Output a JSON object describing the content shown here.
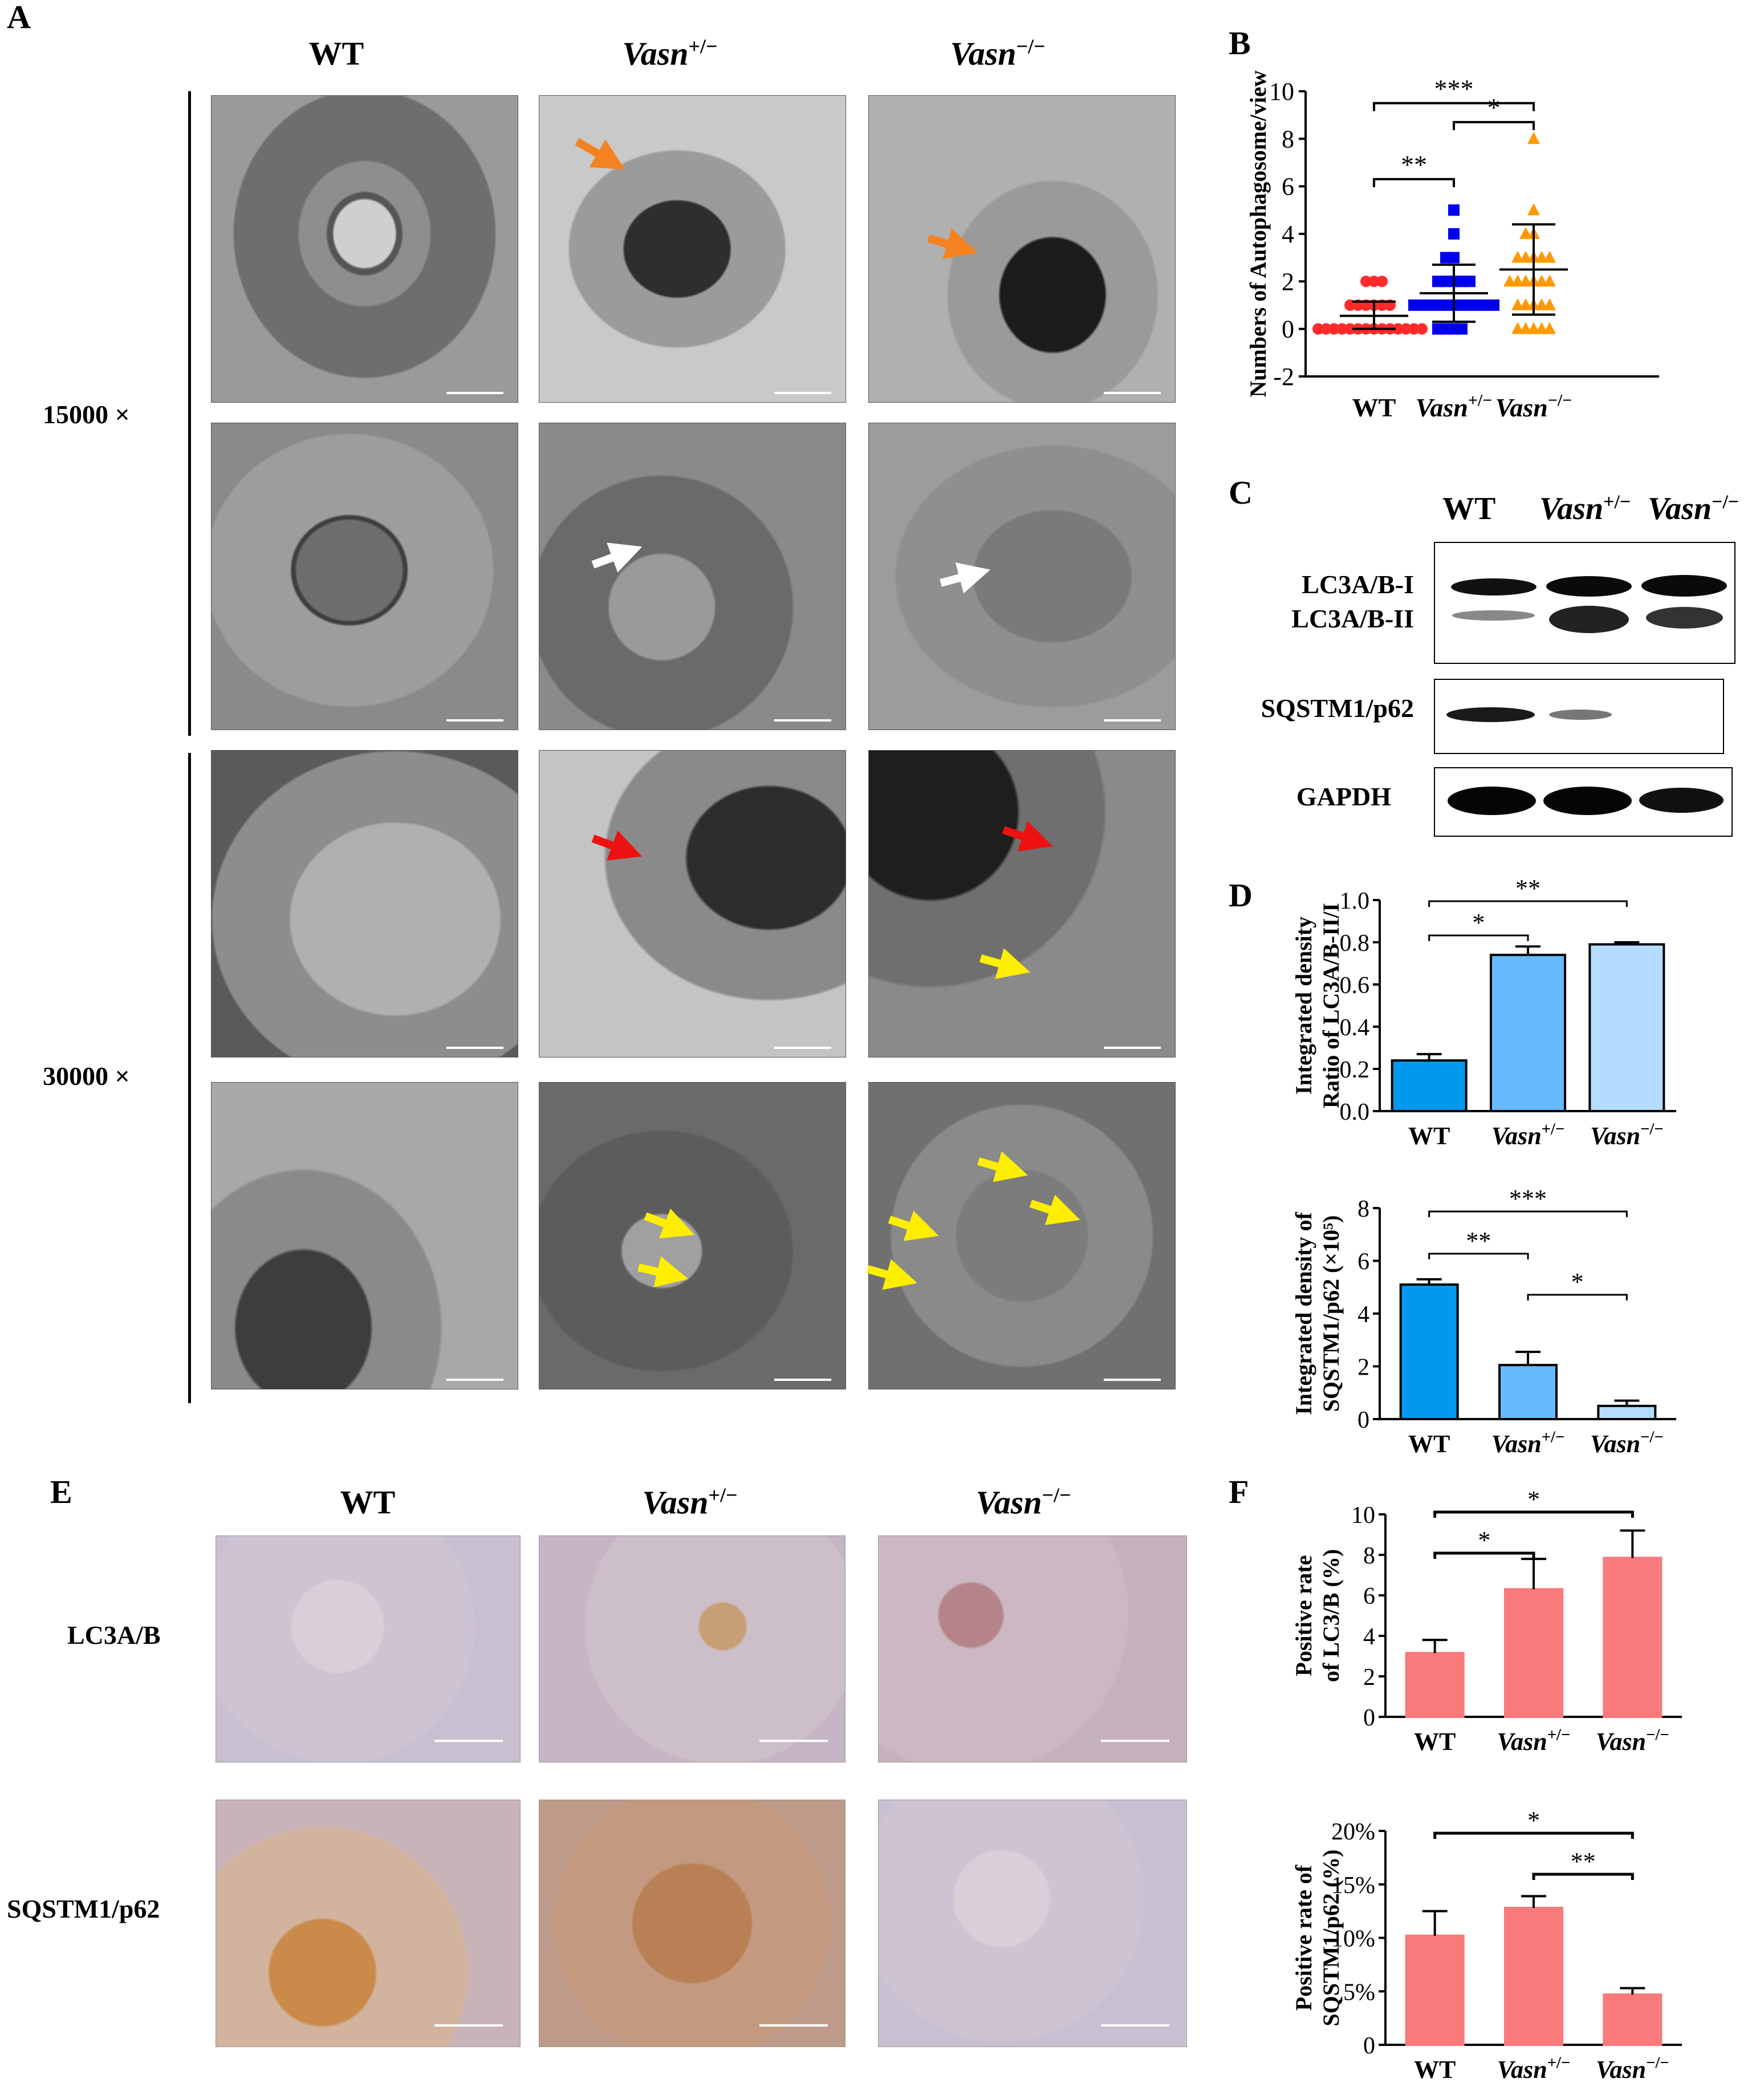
{
  "panels": {
    "a": "A",
    "b": "B",
    "c": "C",
    "d": "D",
    "e": "E",
    "f": "F"
  },
  "genotypes": {
    "wt": "WT",
    "het_base": "Vasn",
    "het_sup": "+/−",
    "ko_base": "Vasn",
    "ko_sup": "−/−"
  },
  "panel_a": {
    "mag1": "15000 ×",
    "mag2": "30000 ×"
  },
  "panel_c": {
    "lc3_i": "LC3A/B-I",
    "lc3_ii": "LC3A/B-II",
    "p62": "SQSTM1/p62",
    "gapdh": "GAPDH"
  },
  "panel_e": {
    "row1": "LC3A/B",
    "row2": "SQSTM1/p62"
  },
  "colors": {
    "wt_red": "#ff2a2a",
    "het_blue": "#0000ee",
    "ko_orange": "#ff9900",
    "bar_d1": "#0099ee",
    "bar_d2": "#66bbff",
    "bar_d3": "#b3dcff",
    "bar_f": "#f87a7a",
    "arrow_orange": "#f58220",
    "arrow_white": "#ffffff",
    "arrow_red": "#ee1111",
    "arrow_yellow": "#ffee00"
  },
  "chart_data": [
    {
      "id": "B",
      "type": "scatter",
      "ylabel": "Numbers of Autophagosome/view",
      "categories": [
        "WT",
        "Vasn+/−",
        "Vasn−/−"
      ],
      "ylim": [
        -2,
        10
      ],
      "yticks": [
        -2,
        0,
        2,
        4,
        6,
        8,
        10
      ],
      "means": [
        0.55,
        1.5,
        2.5
      ],
      "sd": [
        0.6,
        1.2,
        1.9
      ],
      "points": [
        [
          0,
          0,
          0,
          0,
          0,
          0,
          0,
          0,
          0,
          0,
          0,
          0,
          0,
          0,
          1,
          1,
          1,
          1,
          1,
          1,
          2,
          2,
          2
        ],
        [
          0,
          0,
          0,
          0,
          1,
          1,
          1,
          1,
          1,
          1,
          1,
          1,
          1,
          1,
          1,
          2,
          2,
          2,
          2,
          2,
          3,
          3,
          4,
          5
        ],
        [
          0,
          0,
          0,
          0,
          0,
          1,
          1,
          1,
          1,
          1,
          2,
          2,
          2,
          2,
          2,
          2,
          3,
          3,
          3,
          3,
          3,
          4,
          4,
          5,
          8
        ]
      ],
      "significance": [
        {
          "pair": [
            0,
            2
          ],
          "label": "***"
        },
        {
          "pair": [
            1,
            2
          ],
          "label": "*"
        },
        {
          "pair": [
            0,
            1
          ],
          "label": "**"
        }
      ]
    },
    {
      "id": "D1",
      "type": "bar",
      "ylabel": [
        "Integrated density",
        "Ratio of LC3A/B-II/I"
      ],
      "categories": [
        "WT",
        "Vasn+/−",
        "Vasn−/−"
      ],
      "values": [
        0.24,
        0.74,
        0.79
      ],
      "errors": [
        0.03,
        0.04,
        0.01
      ],
      "ylim": [
        0,
        1.0
      ],
      "yticks": [
        "0.0",
        "0.2",
        "0.4",
        "0.6",
        "0.8",
        "1.0"
      ],
      "significance": [
        {
          "pair": [
            0,
            2
          ],
          "label": "**"
        },
        {
          "pair": [
            0,
            1
          ],
          "label": "*"
        }
      ]
    },
    {
      "id": "D2",
      "type": "bar",
      "ylabel": [
        "Integrated density of",
        "SQSTM1/p62 (×10⁵)"
      ],
      "categories": [
        "WT",
        "Vasn+/−",
        "Vasn−/−"
      ],
      "values": [
        5.1,
        2.05,
        0.5
      ],
      "errors": [
        0.2,
        0.5,
        0.2
      ],
      "ylim": [
        0,
        8
      ],
      "yticks": [
        "0",
        "2",
        "4",
        "6",
        "8"
      ],
      "significance": [
        {
          "pair": [
            0,
            2
          ],
          "label": "***"
        },
        {
          "pair": [
            0,
            1
          ],
          "label": "**"
        },
        {
          "pair": [
            1,
            2
          ],
          "label": "*"
        }
      ]
    },
    {
      "id": "F1",
      "type": "bar",
      "ylabel": [
        "Positive rate",
        "of LC3/B (%)"
      ],
      "categories": [
        "WT",
        "Vasn+/−",
        "Vasn−/−"
      ],
      "values": [
        3.15,
        6.3,
        7.85
      ],
      "errors": [
        0.65,
        1.5,
        1.35
      ],
      "ylim": [
        0,
        10
      ],
      "yticks": [
        "0",
        "2",
        "4",
        "6",
        "8",
        "10"
      ],
      "significance": [
        {
          "pair": [
            0,
            2
          ],
          "label": "*"
        },
        {
          "pair": [
            0,
            1
          ],
          "label": "*"
        }
      ]
    },
    {
      "id": "F2",
      "type": "bar",
      "ylabel": [
        "Positive rate of",
        "SQSTM1/p62 (%)"
      ],
      "categories": [
        "WT",
        "Vasn+/−",
        "Vasn−/−"
      ],
      "values": [
        10.2,
        12.8,
        4.7
      ],
      "errors": [
        2.3,
        1.1,
        0.6
      ],
      "ylim": [
        0,
        20
      ],
      "yticks": [
        "0",
        "5%",
        "10%",
        "15%",
        "20%"
      ],
      "significance": [
        {
          "pair": [
            0,
            2
          ],
          "label": "*"
        },
        {
          "pair": [
            1,
            2
          ],
          "label": "**"
        }
      ]
    }
  ]
}
